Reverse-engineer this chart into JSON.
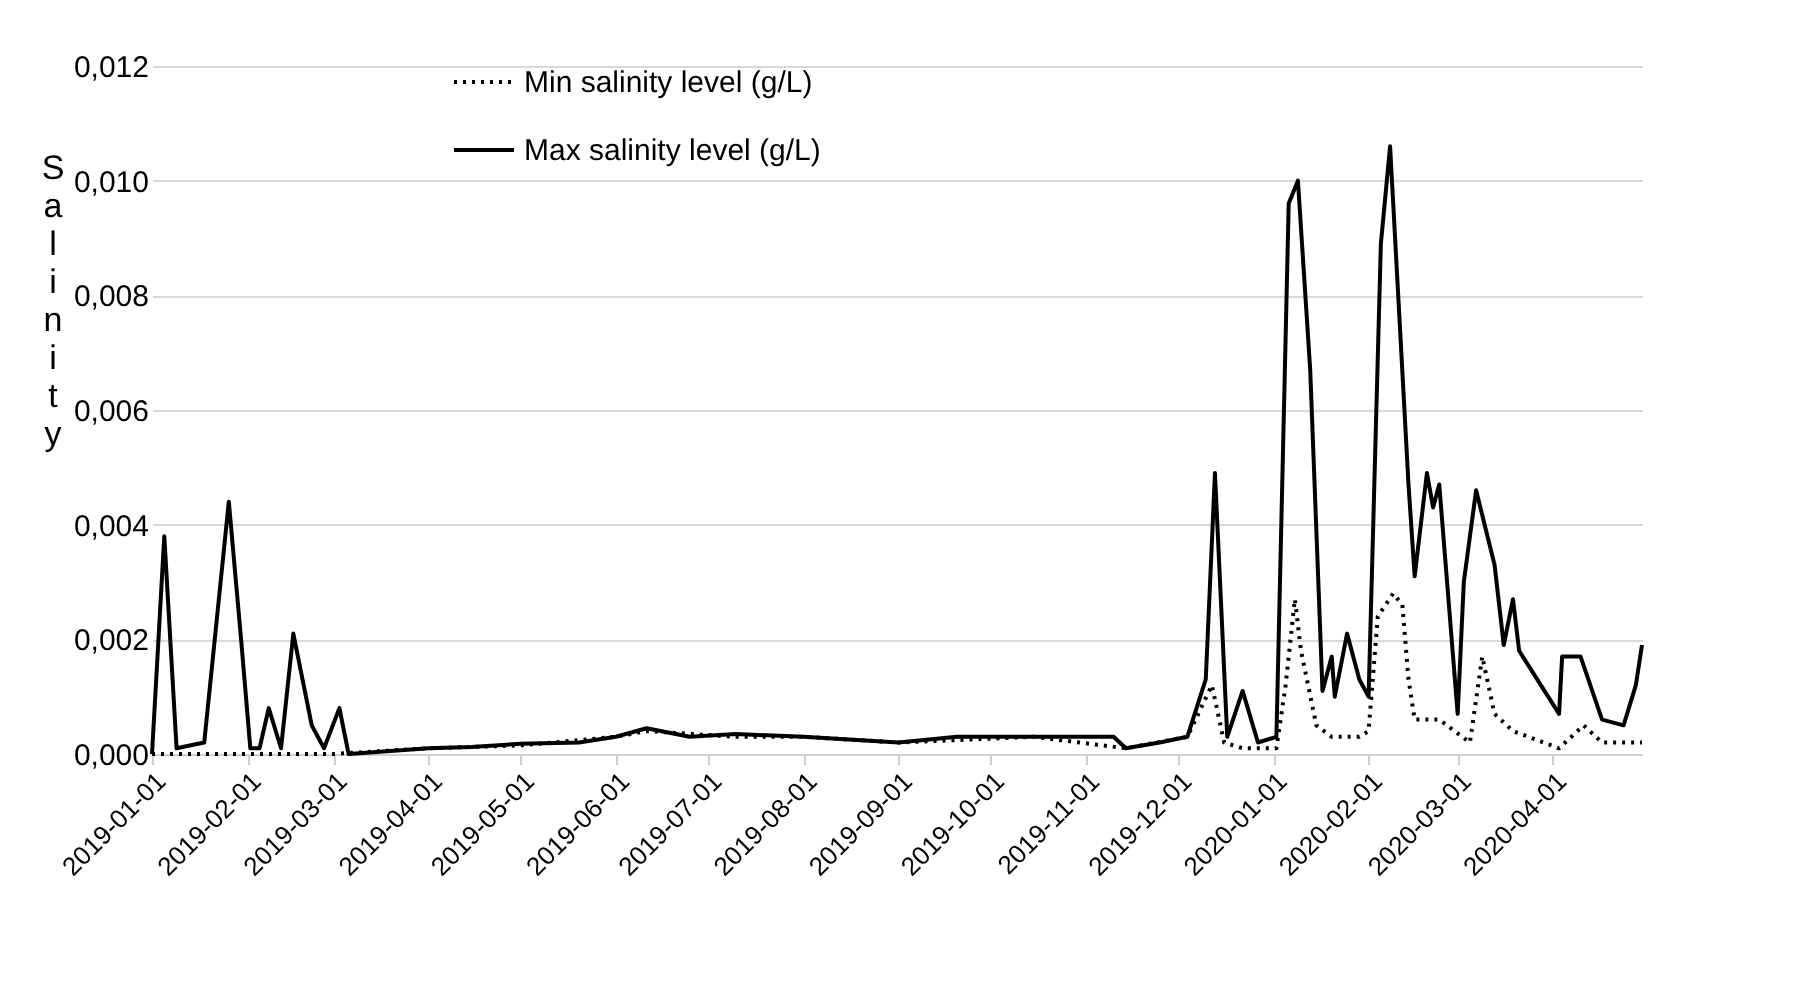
{
  "chart_data": {
    "type": "line",
    "ylabel": "Salinity",
    "legend": "top",
    "grid": "y",
    "xlim": [
      "2019-01-01",
      "2020-04-30"
    ],
    "xticks": [
      "2019-01-01",
      "2019-02-01",
      "2019-03-01",
      "2019-04-01",
      "2019-05-01",
      "2019-06-01",
      "2019-07-01",
      "2019-08-01",
      "2019-09-01",
      "2019-10-01",
      "2019-11-01",
      "2019-12-01",
      "2020-01-01",
      "2020-02-01",
      "2020-03-01",
      "2020-04-01"
    ],
    "ylim": [
      0,
      0.012
    ],
    "yticks": [
      {
        "value": 0,
        "label": "0,000"
      },
      {
        "value": 0.002,
        "label": "0,002"
      },
      {
        "value": 0.004,
        "label": "0,004"
      },
      {
        "value": 0.006,
        "label": "0,006"
      },
      {
        "value": 0.008,
        "label": "0,008"
      },
      {
        "value": 0.01,
        "label": "0,010"
      },
      {
        "value": 0.012,
        "label": "0,012"
      }
    ],
    "series": [
      {
        "name": "Min salinity level (g/L)",
        "color": "#000000",
        "line_style": "dotted",
        "x": [
          "2019-01-01",
          "2019-02-01",
          "2019-03-01",
          "2019-04-01",
          "2019-05-01",
          "2019-06-01",
          "2019-06-11",
          "2019-07-10",
          "2019-08-01",
          "2019-09-01",
          "2019-10-15",
          "2019-11-14",
          "2019-12-04",
          "2019-12-12",
          "2019-12-16",
          "2019-12-22",
          "2020-01-02",
          "2020-01-05",
          "2020-01-08",
          "2020-01-10",
          "2020-01-15",
          "2020-01-20",
          "2020-01-29",
          "2020-02-01",
          "2020-02-04",
          "2020-02-09",
          "2020-02-12",
          "2020-02-14",
          "2020-02-16",
          "2020-02-24",
          "2020-02-29",
          "2020-03-05",
          "2020-03-09",
          "2020-03-13",
          "2020-03-19",
          "2020-04-03",
          "2020-04-11",
          "2020-04-17",
          "2020-04-30"
        ],
        "values": [
          0,
          0,
          0,
          0.0001,
          0.00015,
          0.0003,
          0.0004,
          0.0003,
          0.0003,
          0.0002,
          0.0003,
          0.0001,
          0.0003,
          0.0012,
          0.0002,
          0.0001,
          0.0001,
          0.0012,
          0.0027,
          0.0018,
          0.0005,
          0.0003,
          0.0003,
          0.0004,
          0.0024,
          0.0028,
          0.0026,
          0.0013,
          0.0006,
          0.0006,
          0.0004,
          0.0002,
          0.0017,
          0.0007,
          0.0004,
          0.0001,
          0.0005,
          0.0002,
          0.0002
        ]
      },
      {
        "name": "Max salinity level (g/L)",
        "color": "#000000",
        "line_style": "solid",
        "x": [
          "2019-01-01",
          "2019-01-05",
          "2019-01-09",
          "2019-01-18",
          "2019-01-26",
          "2019-01-30",
          "2019-02-02",
          "2019-02-05",
          "2019-02-08",
          "2019-02-12",
          "2019-02-16",
          "2019-02-22",
          "2019-02-26",
          "2019-03-03",
          "2019-03-06",
          "2019-04-01",
          "2019-04-15",
          "2019-05-01",
          "2019-05-20",
          "2019-06-01",
          "2019-06-11",
          "2019-06-25",
          "2019-07-10",
          "2019-08-01",
          "2019-09-01",
          "2019-09-20",
          "2019-10-15",
          "2019-11-10",
          "2019-11-14",
          "2019-11-25",
          "2019-12-04",
          "2019-12-10",
          "2019-12-13",
          "2019-12-17",
          "2019-12-22",
          "2019-12-27",
          "2020-01-02",
          "2020-01-06",
          "2020-01-09",
          "2020-01-13",
          "2020-01-17",
          "2020-01-20",
          "2020-01-21",
          "2020-01-25",
          "2020-01-29",
          "2020-02-01",
          "2020-02-05",
          "2020-02-08",
          "2020-02-14",
          "2020-02-16",
          "2020-02-20",
          "2020-02-22",
          "2020-02-24",
          "2020-03-01",
          "2020-03-03",
          "2020-03-07",
          "2020-03-13",
          "2020-03-16",
          "2020-03-19",
          "2020-03-21",
          "2020-04-03",
          "2020-04-04",
          "2020-04-10",
          "2020-04-17",
          "2020-04-24",
          "2020-04-28",
          "2020-04-30"
        ],
        "values": [
          0,
          0.0038,
          0.0001,
          0.0002,
          0.0044,
          0.002,
          0.0001,
          0.0001,
          0.0008,
          0.0001,
          0.0021,
          0.0005,
          0.0001,
          0.0008,
          0,
          0.0001,
          0.00012,
          0.00018,
          0.0002,
          0.0003,
          0.00045,
          0.0003,
          0.00035,
          0.0003,
          0.0002,
          0.0003,
          0.0003,
          0.0003,
          0.0001,
          0.0002,
          0.0003,
          0.0013,
          0.0049,
          0.0003,
          0.0011,
          0.0002,
          0.0003,
          0.0096,
          0.01,
          0.0067,
          0.0011,
          0.0017,
          0.001,
          0.0021,
          0.0013,
          0.001,
          0.0089,
          0.0106,
          0.0047,
          0.0031,
          0.0049,
          0.0043,
          0.0047,
          0.0007,
          0.003,
          0.0046,
          0.0033,
          0.0019,
          0.0027,
          0.0018,
          0.0007,
          0.0017,
          0.0017,
          0.0006,
          0.0005,
          0.0012,
          0.0019
        ]
      }
    ]
  }
}
